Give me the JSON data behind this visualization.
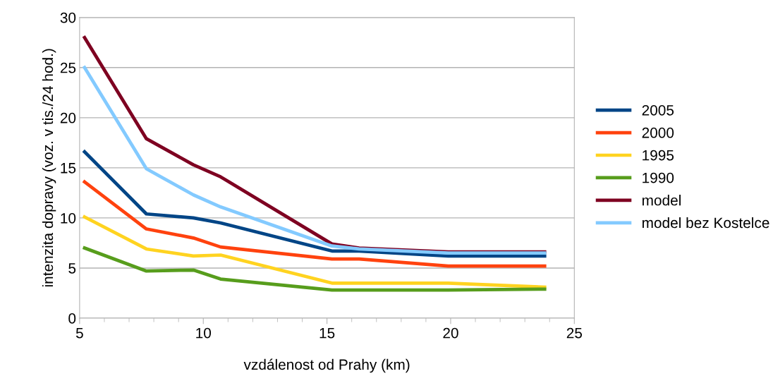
{
  "chart_data": {
    "type": "line",
    "xlabel": "vzdálenost od Prahy (km)",
    "ylabel": "intenzita dopravy (voz. v tis./24 hod.)",
    "x": [
      5.2,
      7.7,
      9.6,
      10.7,
      15.2,
      16.3,
      19.9,
      23.8
    ],
    "series": [
      {
        "name": "2005",
        "color": "#004586",
        "values": [
          16.6,
          10.4,
          10.0,
          9.5,
          6.7,
          6.7,
          6.2,
          6.2
        ]
      },
      {
        "name": "2000",
        "color": "#ff420e",
        "values": [
          13.6,
          8.9,
          8.0,
          7.1,
          5.9,
          5.9,
          5.2,
          5.2
        ]
      },
      {
        "name": "1995",
        "color": "#ffd320",
        "values": [
          10.1,
          6.9,
          6.2,
          6.3,
          3.5,
          3.5,
          3.5,
          3.1
        ]
      },
      {
        "name": "1990",
        "color": "#579d1c",
        "values": [
          7.0,
          4.7,
          4.8,
          3.9,
          2.8,
          2.8,
          2.8,
          2.9
        ]
      },
      {
        "name": "model",
        "color": "#7e0021",
        "values": [
          28.0,
          17.9,
          15.3,
          14.1,
          7.4,
          7.0,
          6.6,
          6.6
        ]
      },
      {
        "name": "model bez Kostelce",
        "color": "#83caff",
        "values": [
          25.0,
          14.9,
          12.3,
          11.1,
          7.2,
          6.9,
          6.5,
          6.5
        ]
      }
    ],
    "xlim": [
      5,
      25
    ],
    "xticks": [
      5,
      10,
      15,
      20,
      25
    ],
    "ylim": [
      0,
      30
    ],
    "yticks": [
      0,
      5,
      10,
      15,
      20,
      25,
      30
    ],
    "grid": "y",
    "legend": "right",
    "marker": "none",
    "line_style": "solid"
  }
}
